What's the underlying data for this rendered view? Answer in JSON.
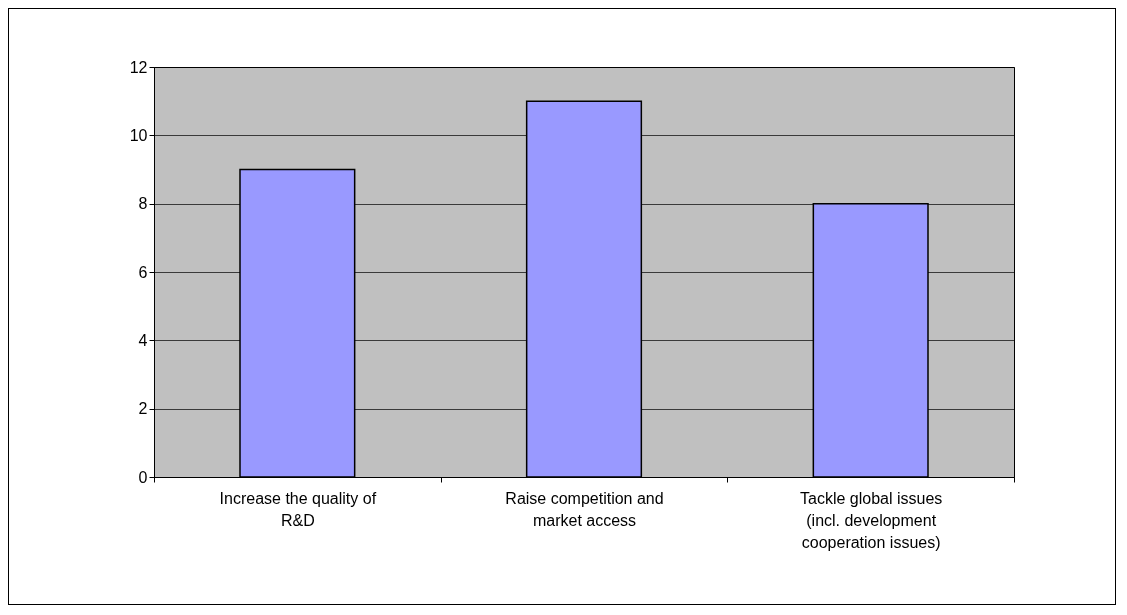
{
  "chart_data": {
    "type": "bar",
    "categories": [
      "Increase the quality of R&D",
      "Raise competition and market access",
      "Tackle global issues (incl. development cooperation issues)"
    ],
    "values": [
      9,
      11,
      8
    ],
    "color": "#9999ff",
    "ylim": [
      0,
      12
    ],
    "yticks": [
      0,
      2,
      4,
      6,
      8,
      10,
      12
    ],
    "grid": "y"
  }
}
